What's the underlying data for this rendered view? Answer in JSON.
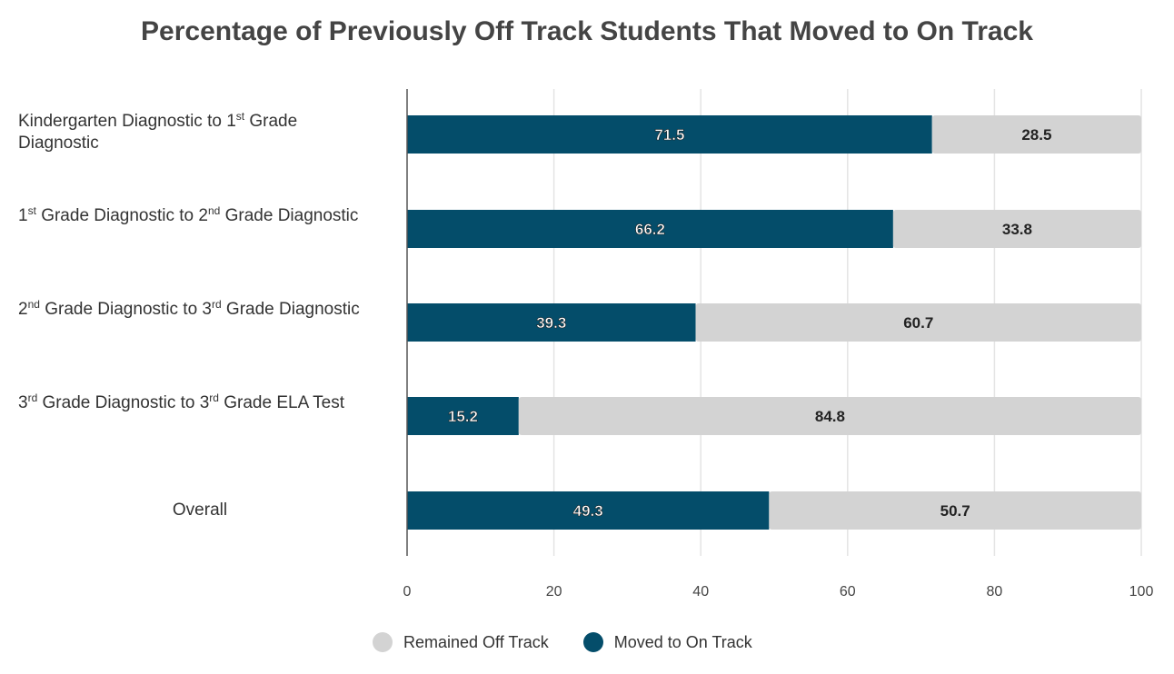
{
  "chart_data": {
    "type": "bar",
    "orientation": "horizontal",
    "stacked": true,
    "title": "Percentage of Previously Off Track Students That Moved to On Track",
    "categories": [
      "Kindergarten Diagnostic to 1st Grade Diagnostic",
      "1st Grade Diagnostic to 2nd Grade Diagnostic",
      "2nd Grade Diagnostic to 3rd Grade Diagnostic",
      "3rd Grade Diagnostic to 3rd Grade ELA Test",
      "Overall"
    ],
    "series": [
      {
        "name": "Moved to On Track",
        "color": "#044d6a",
        "values": [
          71.5,
          66.2,
          39.3,
          15.2,
          49.3
        ]
      },
      {
        "name": "Remained Off Track",
        "color": "#d3d3d3",
        "values": [
          28.5,
          33.8,
          60.7,
          84.8,
          50.7
        ]
      }
    ],
    "xlim": [
      0,
      100
    ],
    "xticks": [
      "0",
      "20",
      "40",
      "60",
      "80",
      "100"
    ],
    "grid": true,
    "legend": {
      "placement": "bottom",
      "entries": [
        "Remained Off Track",
        "Moved to On Track"
      ]
    }
  }
}
